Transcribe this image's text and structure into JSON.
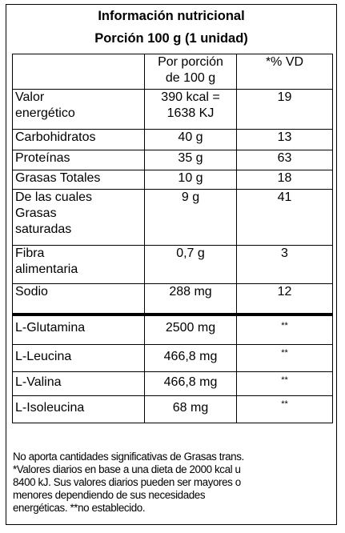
{
  "title_line1": "Información nutricional",
  "title_line2": "Porción 100 g (1 unidad)",
  "header": {
    "col1": "",
    "col2": "Por porción\nde 100 g",
    "col3": "*% VD"
  },
  "rows": [
    {
      "name": "Valor\nenergético",
      "amount": "390 kcal =\n1638 KJ",
      "vd": "19"
    },
    {
      "name": "Carbohidratos",
      "amount": "40 g",
      "vd": "13"
    },
    {
      "name": "Proteínas",
      "amount": "35 g",
      "vd": "63"
    },
    {
      "name": "Grasas Totales",
      "amount": "10 g",
      "vd": "18"
    },
    {
      "name": "De las cuales\nGrasas\nsaturadas",
      "amount": "9 g",
      "vd": "41"
    },
    {
      "name": "Fibra\nalimentaria",
      "amount": "0,7 g",
      "vd": "3"
    },
    {
      "name": "Sodio",
      "amount": "288 mg",
      "vd": "12"
    },
    {
      "name": "L-Glutamina",
      "amount": "2500 mg",
      "vd": "**"
    },
    {
      "name": "L-Leucina",
      "amount": "466,8 mg",
      "vd": "**"
    },
    {
      "name": "L-Valina",
      "amount": "466,8 mg",
      "vd": "**"
    },
    {
      "name": "L-Isoleucina",
      "amount": "68 mg",
      "vd": "**"
    }
  ],
  "footnote": [
    "No aporta cantidades significativas de Grasas trans.",
    "*Valores diarios en base a una dieta de 2000 kcal u",
    "8400 kJ. Sus valores diarios pueden ser mayores o",
    "menores dependiendo de sus necesidades",
    "energéticas. **no establecido."
  ]
}
